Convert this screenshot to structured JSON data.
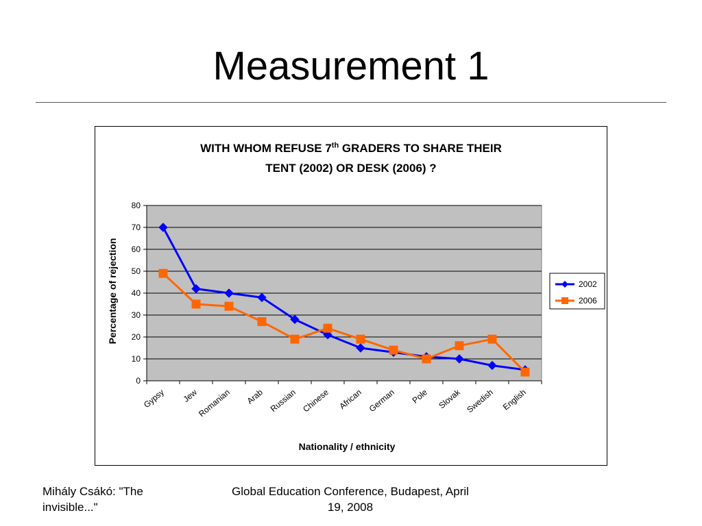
{
  "slide": {
    "title": "Measurement 1",
    "footer_left": "Mihály Csákó: \"The invisible...\"",
    "footer_center": "Global Education Conference, Budapest, April 19, 2008"
  },
  "chart_data": {
    "type": "line",
    "title_line1_pre": "WITH WHOM REFUSE 7",
    "title_sup": "th",
    "title_line1_post": " GRADERS TO SHARE THEIR",
    "title_line2": "TENT (2002) OR DESK (2006) ?",
    "xlabel": "Nationality / ethnicity",
    "ylabel": "Percentage of rejection",
    "categories": [
      "Gypsy",
      "Jew",
      "Romanian",
      "Arab",
      "Russian",
      "Chinese",
      "African",
      "German",
      "Pole",
      "Slovak",
      "Swedish",
      "English"
    ],
    "ylim": [
      0,
      80
    ],
    "yticks": [
      0,
      10,
      20,
      30,
      40,
      50,
      60,
      70,
      80
    ],
    "grid": true,
    "plot_background": "#c0c0c0",
    "legend_position": "right",
    "series": [
      {
        "name": "2002",
        "color": "#0000ff",
        "marker": "diamond",
        "values": [
          70,
          42,
          40,
          38,
          28,
          21,
          15,
          13,
          11,
          10,
          7,
          5
        ]
      },
      {
        "name": "2006",
        "color": "#ff6600",
        "marker": "square",
        "values": [
          49,
          35,
          34,
          27,
          19,
          24,
          19,
          14,
          10,
          16,
          19,
          4
        ]
      }
    ]
  }
}
